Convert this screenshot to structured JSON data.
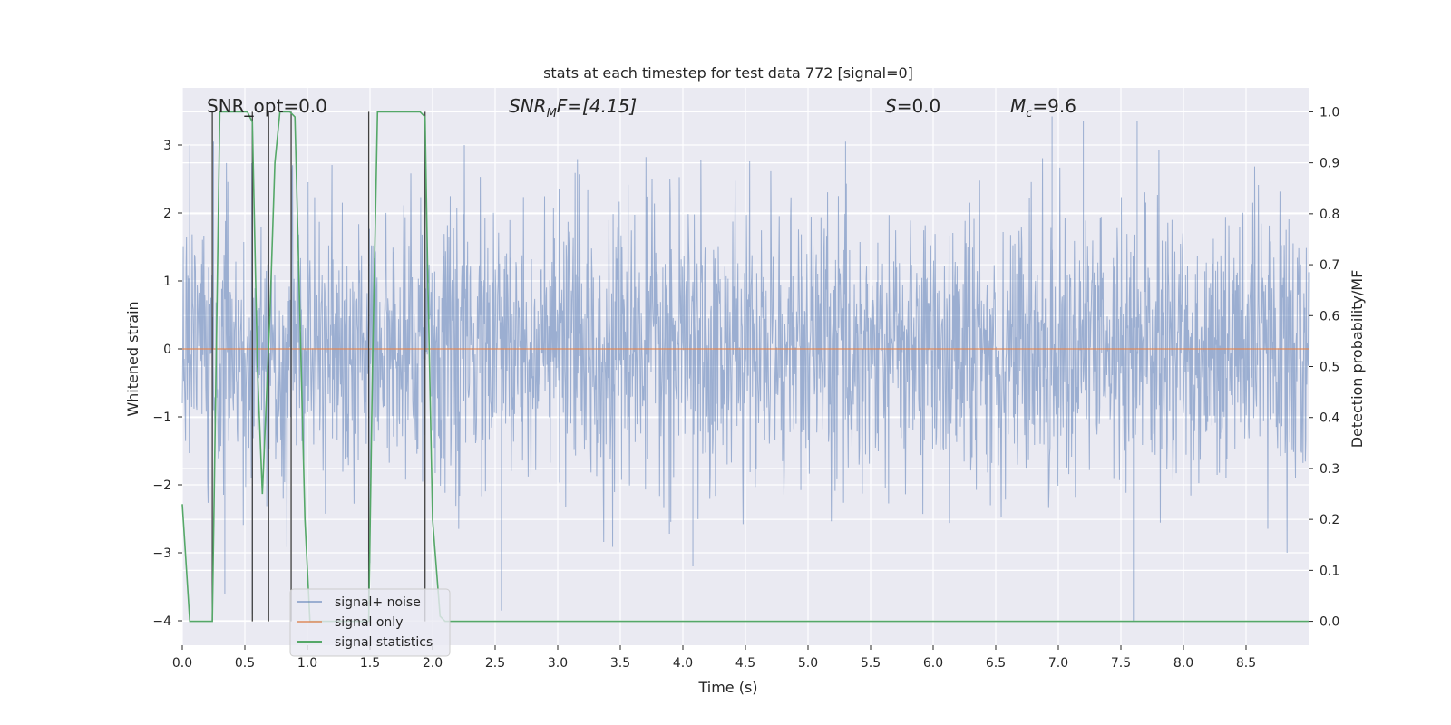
{
  "chart_data": {
    "type": "line",
    "title": "stats at each timestep for test data 772 [signal=0]",
    "xlabel": "Time (s)",
    "ylabel": "Whitened strain",
    "y2label": "Detection probability/MF",
    "xlim": [
      0.0,
      9.0
    ],
    "ylim": [
      -4.36,
      3.84
    ],
    "y2lim": [
      -0.047,
      1.047
    ],
    "xticks": [
      0.0,
      0.5,
      1.0,
      1.5,
      2.0,
      2.5,
      3.0,
      3.5,
      4.0,
      4.5,
      5.0,
      5.5,
      6.0,
      6.5,
      7.0,
      7.5,
      8.0,
      8.5
    ],
    "xtick_labels": [
      "0.0",
      "0.5",
      "1.0",
      "1.5",
      "2.0",
      "2.5",
      "3.0",
      "3.5",
      "4.0",
      "4.5",
      "5.0",
      "5.5",
      "6.0",
      "6.5",
      "7.0",
      "7.5",
      "8.0",
      "8.5"
    ],
    "yticks": [
      3,
      2,
      1,
      0,
      -1,
      -2,
      -3,
      -4
    ],
    "ytick_labels": [
      "3",
      "2",
      "1",
      "0",
      "−1",
      "−2",
      "−3",
      "−4"
    ],
    "y2ticks": [
      1.0,
      0.9,
      0.8,
      0.7,
      0.6,
      0.5,
      0.4,
      0.3,
      0.2,
      0.1,
      0.0
    ],
    "y2tick_labels": [
      "1.0",
      "0.9",
      "0.8",
      "0.7",
      "0.6",
      "0.5",
      "0.4",
      "0.3",
      "0.2",
      "0.1",
      "0.0"
    ],
    "annotations": {
      "snr_opt": "SNR_opt=0.0",
      "snr_mf_sym": "SNR",
      "snr_mf_sub": "M",
      "snr_mf_rest": "F=[4.15]",
      "s_sym": "S",
      "s_rest": "=0.0",
      "mc_sym": "M",
      "mc_sub": "c",
      "mc_rest": "=9.6"
    },
    "legend": {
      "position": "lower-left",
      "entries": [
        "signal+ noise",
        "signal only",
        "signal statistics"
      ]
    },
    "series": [
      {
        "name": "signal+ noise",
        "color": "#4c72b0",
        "style": "noise",
        "amplitude_std": 1.0,
        "x_range": [
          0.0,
          9.0
        ],
        "notable_extremes": [
          [
            0.25,
            3.05
          ],
          [
            0.34,
            -3.6
          ],
          [
            0.56,
            -3.9
          ],
          [
            1.5,
            -3.15
          ],
          [
            2.55,
            -3.85
          ],
          [
            4.08,
            -3.2
          ],
          [
            5.3,
            3.05
          ],
          [
            6.95,
            3.42
          ],
          [
            7.2,
            3.35
          ],
          [
            7.6,
            -4.0
          ],
          [
            7.63,
            3.35
          ]
        ]
      },
      {
        "name": "signal only",
        "color": "#dd8452",
        "x": [
          0.0,
          9.0
        ],
        "y": [
          0.0,
          0.0
        ]
      },
      {
        "name": "signal statistics",
        "color": "#55a868",
        "axis": "right",
        "x": [
          0.0,
          0.06,
          0.24,
          0.3,
          0.35,
          0.52,
          0.56,
          0.6,
          0.64,
          0.7,
          0.74,
          0.78,
          0.86,
          0.9,
          0.94,
          0.98,
          1.02,
          1.05,
          1.1,
          1.2,
          1.4,
          1.49,
          1.52,
          1.56,
          1.66,
          1.9,
          1.94,
          1.96,
          2.0,
          2.06,
          2.1,
          3.0,
          9.0
        ],
        "y": [
          0.23,
          0.0,
          0.0,
          1.0,
          1.0,
          1.0,
          0.98,
          0.5,
          0.25,
          0.6,
          0.9,
          1.0,
          1.0,
          0.99,
          0.6,
          0.2,
          0.0,
          0.0,
          0.0,
          0.0,
          0.0,
          0.0,
          0.5,
          1.0,
          1.0,
          1.0,
          0.99,
          0.7,
          0.2,
          0.01,
          0.0,
          0.0,
          0.0
        ]
      }
    ],
    "vertical_markers": [
      {
        "x": 0.24,
        "y2_top": 1.0
      },
      {
        "x": 0.56,
        "y2_top": 1.0
      },
      {
        "x": 0.69,
        "y2_top": 1.0
      },
      {
        "x": 0.87,
        "y2_top": 1.0
      },
      {
        "x": 1.49,
        "y2_top": 1.0
      },
      {
        "x": 1.94,
        "y2_top": 1.0
      }
    ],
    "colors": {
      "background": "#eaeaf2",
      "grid": "#ffffff",
      "text": "#262626",
      "marker": "#404040"
    }
  }
}
